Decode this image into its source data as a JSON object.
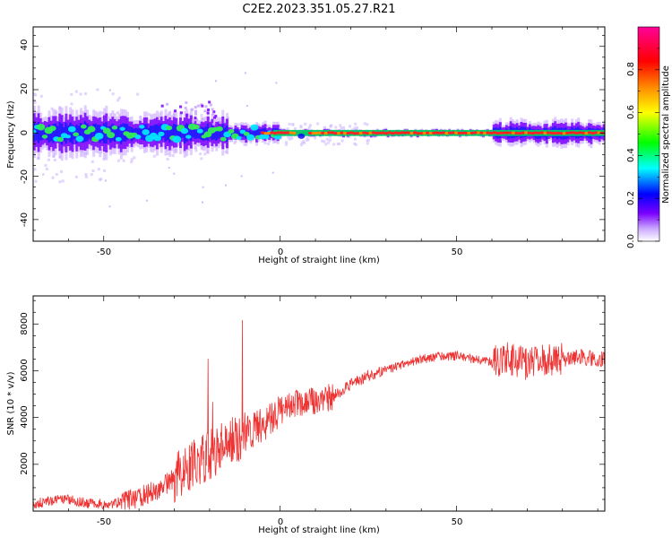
{
  "title": "C2E2.2023.351.05.27.R21",
  "chart_data": [
    {
      "type": "heatmap",
      "xlabel": "Height of straight line (km)",
      "ylabel": "Frequency (Hz)",
      "xlim": [
        -70,
        92
      ],
      "ylim": [
        -50,
        49
      ],
      "xticks": [
        -50,
        0,
        50
      ],
      "yticks": [
        -40,
        -20,
        0,
        20,
        40
      ],
      "ridge_frequency_hz": 0,
      "colorbar": {
        "label": "Normalized spectral amplitude",
        "range": [
          0,
          1
        ],
        "ticks": [
          "0.0",
          "0.2",
          "0.4",
          "0.6",
          "0.8"
        ],
        "colormap": [
          "#ffffff",
          "#c9a6ff",
          "#7a00ff",
          "#0000ff",
          "#00ffff",
          "#00ff00",
          "#ffff00",
          "#ff8800",
          "#ff0000",
          "#ff0099"
        ]
      }
    },
    {
      "type": "line",
      "xlabel": "Height of straight line (km)",
      "ylabel": "SNR (10 * v/v)",
      "xlim": [
        -70,
        92
      ],
      "ylim": [
        0,
        9200
      ],
      "xticks": [
        -50,
        0,
        50
      ],
      "yticks": [
        2000,
        4000,
        6000,
        8000
      ],
      "series_color": "#ee3333",
      "x": [
        -70,
        -65,
        -60,
        -55,
        -50,
        -45,
        -40,
        -35,
        -30,
        -25,
        -20,
        -15,
        -10,
        -5,
        0,
        5,
        10,
        15,
        20,
        25,
        30,
        35,
        40,
        45,
        50,
        55,
        60,
        65,
        70,
        75,
        80,
        85,
        90
      ],
      "y": [
        300,
        450,
        500,
        350,
        300,
        380,
        600,
        900,
        1400,
        1900,
        2400,
        3000,
        3300,
        3700,
        4300,
        4600,
        4700,
        4900,
        5400,
        5800,
        6000,
        6300,
        6500,
        6600,
        6650,
        6500,
        6400,
        6500,
        6300,
        6400,
        6500,
        6600,
        6500
      ]
    }
  ]
}
